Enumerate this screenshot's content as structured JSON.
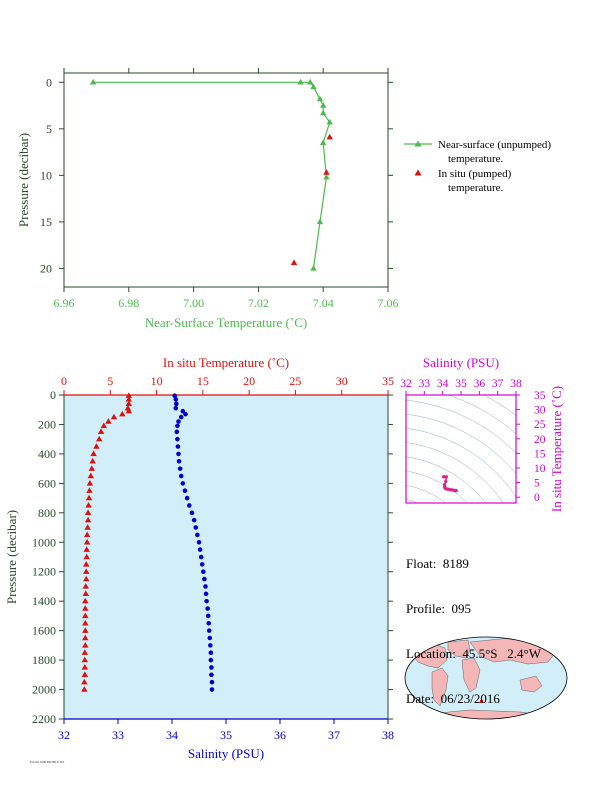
{
  "colors": {
    "green": "#4cbb4c",
    "red": "#e01010",
    "blue": "#0000cc",
    "magenta": "#d400d4",
    "axis_dark": "#2a4a2a",
    "plot_bg": "#d2eef8",
    "land": "#f4b6b6",
    "ocean": "#d2eef8"
  },
  "top_chart": {
    "xlabel": "Near-Surface Temperature (˚C)",
    "ylabel": "Pressure (decibar)",
    "xlim": [
      6.96,
      7.06
    ],
    "ylim": [
      22,
      -1
    ],
    "xticks": [
      "6.96",
      "6.98",
      "7.00",
      "7.02",
      "7.04",
      "7.06"
    ],
    "xtick_values": [
      6.96,
      6.98,
      7.0,
      7.02,
      7.04,
      7.06
    ],
    "yticks": [
      "0",
      "5",
      "10",
      "15",
      "20"
    ],
    "ytick_values": [
      0,
      5,
      10,
      15,
      20
    ],
    "legend": {
      "near_surface_line1": "Near-surface (unpumped)",
      "near_surface_line2": "temperature.",
      "in_situ_line1": "In situ (pumped)",
      "in_situ_line2": "temperature."
    }
  },
  "bottom_chart": {
    "top_axis_label": "In situ Temperature (˚C)",
    "bottom_axis_label": "Salinity (PSU)",
    "ylabel": "Pressure (decibar)",
    "temp_ticks": [
      "0",
      "5",
      "10",
      "15",
      "20",
      "25",
      "30",
      "35"
    ],
    "temp_tick_values": [
      0,
      5,
      10,
      15,
      20,
      25,
      30,
      35
    ],
    "sal_ticks": [
      "32",
      "33",
      "34",
      "35",
      "36",
      "37",
      "38"
    ],
    "sal_tick_values": [
      32,
      33,
      34,
      35,
      36,
      37,
      38
    ],
    "p_ticks": [
      "0",
      "200",
      "400",
      "600",
      "800",
      "1000",
      "1200",
      "1400",
      "1600",
      "1800",
      "2000",
      "2200"
    ],
    "p_tick_values": [
      0,
      200,
      400,
      600,
      800,
      1000,
      1200,
      1400,
      1600,
      1800,
      2000,
      2200
    ]
  },
  "ts_chart": {
    "top_label": "Salinity (PSU)",
    "right_label": "In situ Temperature (˚C)",
    "sal_ticks": [
      "32",
      "33",
      "34",
      "35",
      "36",
      "37",
      "38"
    ],
    "sal_tick_values": [
      32,
      33,
      34,
      35,
      36,
      37,
      38
    ],
    "temp_ticks": [
      "0",
      "5",
      "10",
      "15",
      "20",
      "25",
      "30",
      "35"
    ],
    "temp_tick_values": [
      0,
      5,
      10,
      15,
      20,
      25,
      30,
      35
    ]
  },
  "info": {
    "float": "Float:  8189",
    "profile": "Profile:  095",
    "location": "Location:  45.5°S   2.4°W",
    "date": "Date:  06/23/2016"
  },
  "footnote": "FLOAT 8189 PROFILE 095",
  "chart_data": [
    {
      "type": "line",
      "title": "",
      "xlabel": "Near-Surface Temperature (˚C)",
      "ylabel": "Pressure (decibar)",
      "xlim": [
        6.96,
        7.06
      ],
      "ylim": [
        22,
        -1
      ],
      "series": [
        {
          "name": "Near-surface (unpumped) temperature.",
          "x": [
            6.969,
            7.033,
            7.036,
            7.037,
            7.039,
            7.04,
            7.04,
            7.042,
            7.04,
            7.041,
            7.039,
            7.037
          ],
          "y": [
            0.0,
            0.0,
            0.0,
            0.5,
            1.8,
            2.5,
            3.3,
            4.3,
            6.5,
            10.2,
            15.0,
            20.0
          ]
        },
        {
          "name": "In situ (pumped) temperature.",
          "x": [
            7.042,
            7.041,
            7.031
          ],
          "y": [
            5.9,
            9.7,
            19.4
          ]
        }
      ]
    },
    {
      "type": "line",
      "title": "",
      "xlabel": "Salinity (PSU)",
      "x2label": "In situ Temperature (˚C)",
      "ylabel": "Pressure (decibar)",
      "ylim": [
        2200,
        0
      ],
      "temperature_xlim": [
        0,
        35
      ],
      "salinity_xlim": [
        32,
        38
      ],
      "series": [
        {
          "name": "In situ Temperature",
          "axis": "temperature",
          "pressure": [
            5,
            30,
            60,
            90,
            110,
            130,
            150,
            180,
            210,
            250,
            300,
            350,
            400,
            450,
            500,
            550,
            600,
            650,
            700,
            750,
            800,
            850,
            900,
            950,
            1000,
            1050,
            1100,
            1150,
            1200,
            1250,
            1300,
            1350,
            1400,
            1450,
            1500,
            1550,
            1600,
            1650,
            1700,
            1750,
            1800,
            1850,
            1900,
            1950,
            2000
          ],
          "value": [
            7.0,
            7.0,
            7.0,
            6.9,
            7.0,
            6.3,
            5.4,
            4.8,
            4.3,
            4.0,
            3.8,
            3.5,
            3.2,
            3.1,
            3.0,
            2.9,
            2.8,
            2.75,
            2.7,
            2.65,
            2.6,
            2.6,
            2.55,
            2.5,
            2.5,
            2.45,
            2.45,
            2.4,
            2.4,
            2.4,
            2.35,
            2.35,
            2.3,
            2.3,
            2.3,
            2.3,
            2.3,
            2.3,
            2.3,
            2.25,
            2.25,
            2.25,
            2.25,
            2.2,
            2.2
          ]
        },
        {
          "name": "Salinity",
          "axis": "salinity",
          "pressure": [
            5,
            30,
            60,
            90,
            110,
            130,
            150,
            180,
            210,
            250,
            300,
            350,
            400,
            450,
            500,
            550,
            600,
            650,
            700,
            750,
            800,
            850,
            900,
            950,
            1000,
            1050,
            1100,
            1150,
            1200,
            1250,
            1300,
            1350,
            1400,
            1450,
            1500,
            1550,
            1600,
            1650,
            1700,
            1750,
            1800,
            1850,
            1900,
            1950,
            2000
          ],
          "value": [
            34.05,
            34.07,
            34.08,
            34.07,
            34.2,
            34.25,
            34.17,
            34.12,
            34.1,
            34.09,
            34.1,
            34.11,
            34.12,
            34.13,
            34.15,
            34.17,
            34.2,
            34.24,
            34.28,
            34.32,
            34.37,
            34.41,
            34.44,
            34.47,
            34.5,
            34.52,
            34.54,
            34.56,
            34.58,
            34.6,
            34.62,
            34.63,
            34.64,
            34.66,
            34.67,
            34.68,
            34.69,
            34.7,
            34.71,
            34.72,
            34.72,
            34.73,
            34.73,
            34.74,
            34.74
          ]
        }
      ]
    },
    {
      "type": "scatter",
      "title": "",
      "xlabel": "Salinity (PSU)",
      "ylabel": "In situ Temperature (˚C)",
      "xlim": [
        32,
        38
      ],
      "ylim": [
        -2,
        35
      ],
      "series": [
        {
          "name": "T-S profile",
          "x": [
            34.05,
            34.08,
            34.2,
            34.17,
            34.1,
            34.1,
            34.12,
            34.15,
            34.2,
            34.3,
            34.4,
            34.5,
            34.58,
            34.64,
            34.68,
            34.71,
            34.73,
            34.74
          ],
          "y": [
            7.0,
            7.0,
            7.0,
            5.4,
            4.3,
            3.8,
            3.2,
            3.0,
            2.8,
            2.7,
            2.6,
            2.5,
            2.4,
            2.3,
            2.3,
            2.3,
            2.25,
            2.2
          ]
        }
      ]
    }
  ]
}
